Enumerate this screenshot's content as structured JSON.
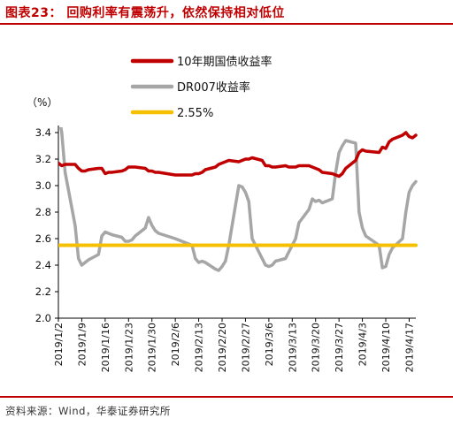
{
  "figure": {
    "title": "图表23： 回购利率有震荡升，依然保持相对低位",
    "source": "资料来源：Wind，华泰证券研究所"
  },
  "chart_data": {
    "type": "line",
    "ylabel": "（%）",
    "ylim": [
      2.0,
      3.4
    ],
    "yticks": [
      "2.0",
      "2.2",
      "2.4",
      "2.6",
      "2.8",
      "3.0",
      "3.2",
      "3.4"
    ],
    "x_tick_labels": [
      "2019/1/2",
      "2019/1/9",
      "2019/1/16",
      "2019/1/23",
      "2019/1/30",
      "2019/2/6",
      "2019/2/13",
      "2019/2/20",
      "2019/2/27",
      "2019/3/6",
      "2019/3/13",
      "2019/3/20",
      "2019/3/27",
      "2019/4/3",
      "2019/4/10",
      "2019/4/17"
    ],
    "x_range": [
      "2019/1/2",
      "2019/4/19"
    ],
    "grid": false,
    "legend_position": "top-center",
    "series": [
      {
        "name": "10年期国债收益率",
        "color": "#c00000",
        "points": [
          [
            "2019/1/2",
            3.17
          ],
          [
            "2019/1/3",
            3.15
          ],
          [
            "2019/1/4",
            3.16
          ],
          [
            "2019/1/7",
            3.16
          ],
          [
            "2019/1/8",
            3.13
          ],
          [
            "2019/1/9",
            3.11
          ],
          [
            "2019/1/10",
            3.11
          ],
          [
            "2019/1/11",
            3.12
          ],
          [
            "2019/1/14",
            3.13
          ],
          [
            "2019/1/15",
            3.13
          ],
          [
            "2019/1/16",
            3.09
          ],
          [
            "2019/1/17",
            3.1
          ],
          [
            "2019/1/18",
            3.1
          ],
          [
            "2019/1/21",
            3.11
          ],
          [
            "2019/1/22",
            3.12
          ],
          [
            "2019/1/23",
            3.14
          ],
          [
            "2019/1/24",
            3.14
          ],
          [
            "2019/1/25",
            3.14
          ],
          [
            "2019/1/28",
            3.13
          ],
          [
            "2019/1/29",
            3.11
          ],
          [
            "2019/1/30",
            3.11
          ],
          [
            "2019/1/31",
            3.1
          ],
          [
            "2019/2/1",
            3.1
          ],
          [
            "2019/2/6",
            3.08
          ],
          [
            "2019/2/11",
            3.08
          ],
          [
            "2019/2/12",
            3.09
          ],
          [
            "2019/2/13",
            3.09
          ],
          [
            "2019/2/14",
            3.1
          ],
          [
            "2019/2/15",
            3.12
          ],
          [
            "2019/2/18",
            3.14
          ],
          [
            "2019/2/19",
            3.16
          ],
          [
            "2019/2/20",
            3.17
          ],
          [
            "2019/2/21",
            3.18
          ],
          [
            "2019/2/22",
            3.19
          ],
          [
            "2019/2/25",
            3.18
          ],
          [
            "2019/2/26",
            3.19
          ],
          [
            "2019/2/27",
            3.2
          ],
          [
            "2019/2/28",
            3.2
          ],
          [
            "2019/3/1",
            3.21
          ],
          [
            "2019/3/4",
            3.19
          ],
          [
            "2019/3/5",
            3.15
          ],
          [
            "2019/3/6",
            3.15
          ],
          [
            "2019/3/7",
            3.14
          ],
          [
            "2019/3/8",
            3.14
          ],
          [
            "2019/3/11",
            3.15
          ],
          [
            "2019/3/12",
            3.14
          ],
          [
            "2019/3/13",
            3.14
          ],
          [
            "2019/3/14",
            3.14
          ],
          [
            "2019/3/15",
            3.15
          ],
          [
            "2019/3/18",
            3.15
          ],
          [
            "2019/3/19",
            3.14
          ],
          [
            "2019/3/20",
            3.13
          ],
          [
            "2019/3/21",
            3.12
          ],
          [
            "2019/3/22",
            3.1
          ],
          [
            "2019/3/25",
            3.09
          ],
          [
            "2019/3/26",
            3.08
          ],
          [
            "2019/3/27",
            3.07
          ],
          [
            "2019/3/28",
            3.09
          ],
          [
            "2019/3/29",
            3.13
          ],
          [
            "2019/4/1",
            3.19
          ],
          [
            "2019/4/2",
            3.25
          ],
          [
            "2019/4/3",
            3.27
          ],
          [
            "2019/4/4",
            3.26
          ],
          [
            "2019/4/8",
            3.25
          ],
          [
            "2019/4/9",
            3.29
          ],
          [
            "2019/4/10",
            3.28
          ],
          [
            "2019/4/11",
            3.33
          ],
          [
            "2019/4/12",
            3.35
          ],
          [
            "2019/4/15",
            3.38
          ],
          [
            "2019/4/16",
            3.4
          ],
          [
            "2019/4/17",
            3.37
          ],
          [
            "2019/4/18",
            3.36
          ],
          [
            "2019/4/19",
            3.38
          ]
        ]
      },
      {
        "name": "DR007收益率",
        "color": "#a6a6a6",
        "points": [
          [
            "2019/1/2",
            3.55
          ],
          [
            "2019/1/3",
            3.4
          ],
          [
            "2019/1/4",
            3.1
          ],
          [
            "2019/1/7",
            2.7
          ],
          [
            "2019/1/8",
            2.45
          ],
          [
            "2019/1/9",
            2.4
          ],
          [
            "2019/1/10",
            2.42
          ],
          [
            "2019/1/11",
            2.44
          ],
          [
            "2019/1/14",
            2.48
          ],
          [
            "2019/1/15",
            2.62
          ],
          [
            "2019/1/16",
            2.65
          ],
          [
            "2019/1/17",
            2.64
          ],
          [
            "2019/1/18",
            2.63
          ],
          [
            "2019/1/21",
            2.61
          ],
          [
            "2019/1/22",
            2.58
          ],
          [
            "2019/1/23",
            2.58
          ],
          [
            "2019/1/24",
            2.59
          ],
          [
            "2019/1/25",
            2.62
          ],
          [
            "2019/1/28",
            2.68
          ],
          [
            "2019/1/29",
            2.76
          ],
          [
            "2019/1/30",
            2.7
          ],
          [
            "2019/1/31",
            2.66
          ],
          [
            "2019/2/1",
            2.64
          ],
          [
            "2019/2/6",
            2.6
          ],
          [
            "2019/2/11",
            2.55
          ],
          [
            "2019/2/12",
            2.45
          ],
          [
            "2019/2/13",
            2.42
          ],
          [
            "2019/2/14",
            2.43
          ],
          [
            "2019/2/15",
            2.42
          ],
          [
            "2019/2/18",
            2.37
          ],
          [
            "2019/2/19",
            2.36
          ],
          [
            "2019/2/20",
            2.39
          ],
          [
            "2019/2/21",
            2.43
          ],
          [
            "2019/2/22",
            2.55
          ],
          [
            "2019/2/25",
            3.0
          ],
          [
            "2019/2/26",
            2.99
          ],
          [
            "2019/2/27",
            2.95
          ],
          [
            "2019/2/28",
            2.88
          ],
          [
            "2019/3/1",
            2.6
          ],
          [
            "2019/3/4",
            2.45
          ],
          [
            "2019/3/5",
            2.4
          ],
          [
            "2019/3/6",
            2.39
          ],
          [
            "2019/3/7",
            2.4
          ],
          [
            "2019/3/8",
            2.43
          ],
          [
            "2019/3/11",
            2.45
          ],
          [
            "2019/3/12",
            2.5
          ],
          [
            "2019/3/13",
            2.55
          ],
          [
            "2019/3/14",
            2.6
          ],
          [
            "2019/3/15",
            2.72
          ],
          [
            "2019/3/18",
            2.82
          ],
          [
            "2019/3/19",
            2.9
          ],
          [
            "2019/3/20",
            2.88
          ],
          [
            "2019/3/21",
            2.89
          ],
          [
            "2019/3/22",
            2.87
          ],
          [
            "2019/3/25",
            2.9
          ],
          [
            "2019/3/26",
            3.1
          ],
          [
            "2019/3/27",
            3.25
          ],
          [
            "2019/3/28",
            3.3
          ],
          [
            "2019/3/29",
            3.34
          ],
          [
            "2019/4/1",
            3.32
          ],
          [
            "2019/4/2",
            2.8
          ],
          [
            "2019/4/3",
            2.68
          ],
          [
            "2019/4/4",
            2.62
          ],
          [
            "2019/4/8",
            2.55
          ],
          [
            "2019/4/9",
            2.38
          ],
          [
            "2019/4/10",
            2.39
          ],
          [
            "2019/4/11",
            2.48
          ],
          [
            "2019/4/12",
            2.53
          ],
          [
            "2019/4/15",
            2.6
          ],
          [
            "2019/4/16",
            2.8
          ],
          [
            "2019/4/17",
            2.95
          ],
          [
            "2019/4/18",
            3.0
          ],
          [
            "2019/4/19",
            3.03
          ]
        ]
      },
      {
        "name": "2.55%",
        "color": "#f5c000",
        "points": [
          [
            "2019/1/2",
            2.55
          ],
          [
            "2019/4/19",
            2.55
          ]
        ]
      }
    ]
  }
}
